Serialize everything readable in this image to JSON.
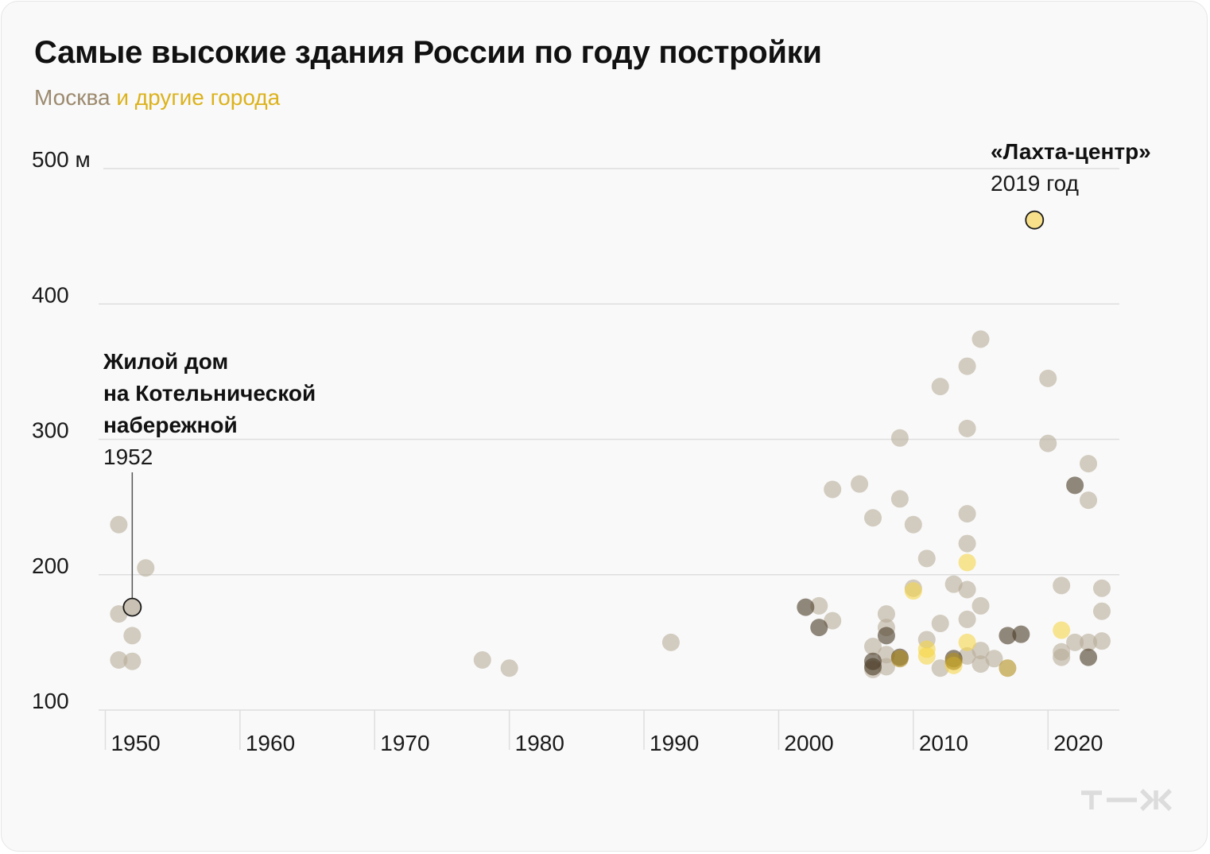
{
  "title": "Самые высокие здания России по году постройки",
  "subtitle": {
    "moscow": "Москва",
    "others": "и другие города"
  },
  "logo_text": "т—ж",
  "colors": {
    "moscow": "#b7ab97",
    "moscow_dark": "#4a3b26",
    "others": "#f5d54a",
    "others_dark": "#b08d1c",
    "grid": "#dedede",
    "background": "#f9f9f9"
  },
  "chart_data": {
    "type": "scatter",
    "title": "Самые высокие здания России по году постройки",
    "xlabel": "",
    "ylabel": "",
    "xlim": [
      1949.5,
      2025.3
    ],
    "ylim": [
      100,
      500
    ],
    "x_ticks": [
      1950,
      1960,
      1970,
      1980,
      1990,
      2000,
      2010,
      2020
    ],
    "y_ticks": [
      {
        "value": 100,
        "label": "100"
      },
      {
        "value": 200,
        "label": "200"
      },
      {
        "value": 300,
        "label": "300"
      },
      {
        "value": 400,
        "label": "400"
      },
      {
        "value": 500,
        "label": "500 м"
      }
    ],
    "grid": true,
    "series": [
      {
        "name": "Москва",
        "color": "#b7ab97",
        "points": [
          {
            "x": 1951,
            "y": 237
          },
          {
            "x": 1951,
            "y": 171
          },
          {
            "x": 1951,
            "y": 137
          },
          {
            "x": 1952,
            "y": 155
          },
          {
            "x": 1952,
            "y": 136
          },
          {
            "x": 1953,
            "y": 205
          },
          {
            "x": 1978,
            "y": 137
          },
          {
            "x": 1980,
            "y": 131
          },
          {
            "x": 1992,
            "y": 150
          },
          {
            "x": 2003,
            "y": 177
          },
          {
            "x": 2004,
            "y": 166
          },
          {
            "x": 2004,
            "y": 263
          },
          {
            "x": 2006,
            "y": 267
          },
          {
            "x": 2007,
            "y": 242
          },
          {
            "x": 2007,
            "y": 147
          },
          {
            "x": 2007,
            "y": 130
          },
          {
            "x": 2008,
            "y": 171
          },
          {
            "x": 2008,
            "y": 161
          },
          {
            "x": 2008,
            "y": 141
          },
          {
            "x": 2008,
            "y": 132
          },
          {
            "x": 2009,
            "y": 301
          },
          {
            "x": 2009,
            "y": 256
          },
          {
            "x": 2010,
            "y": 237
          },
          {
            "x": 2010,
            "y": 190
          },
          {
            "x": 2011,
            "y": 212
          },
          {
            "x": 2011,
            "y": 152
          },
          {
            "x": 2012,
            "y": 339
          },
          {
            "x": 2012,
            "y": 164
          },
          {
            "x": 2012,
            "y": 131
          },
          {
            "x": 2013,
            "y": 193
          },
          {
            "x": 2014,
            "y": 354
          },
          {
            "x": 2014,
            "y": 308
          },
          {
            "x": 2014,
            "y": 245
          },
          {
            "x": 2014,
            "y": 223
          },
          {
            "x": 2014,
            "y": 189
          },
          {
            "x": 2014,
            "y": 167
          },
          {
            "x": 2014,
            "y": 140
          },
          {
            "x": 2015,
            "y": 374
          },
          {
            "x": 2015,
            "y": 177
          },
          {
            "x": 2015,
            "y": 144
          },
          {
            "x": 2015,
            "y": 134
          },
          {
            "x": 2016,
            "y": 138
          },
          {
            "x": 2020,
            "y": 345
          },
          {
            "x": 2020,
            "y": 297
          },
          {
            "x": 2021,
            "y": 192
          },
          {
            "x": 2021,
            "y": 143
          },
          {
            "x": 2021,
            "y": 139
          },
          {
            "x": 2022,
            "y": 150
          },
          {
            "x": 2023,
            "y": 282
          },
          {
            "x": 2023,
            "y": 255
          },
          {
            "x": 2023,
            "y": 150
          },
          {
            "x": 2024,
            "y": 190
          },
          {
            "x": 2024,
            "y": 173
          },
          {
            "x": 2024,
            "y": 151
          }
        ]
      },
      {
        "name": "Москва",
        "color": "#4a3b26",
        "points": [
          {
            "x": 2002,
            "y": 176
          },
          {
            "x": 2003,
            "y": 161
          },
          {
            "x": 2007,
            "y": 136
          },
          {
            "x": 2007,
            "y": 132
          },
          {
            "x": 2008,
            "y": 155
          },
          {
            "x": 2009,
            "y": 139
          },
          {
            "x": 2013,
            "y": 138
          },
          {
            "x": 2017,
            "y": 155
          },
          {
            "x": 2018,
            "y": 156
          },
          {
            "x": 2022,
            "y": 266
          },
          {
            "x": 2023,
            "y": 139
          }
        ]
      },
      {
        "name": "и другие города",
        "color": "#f5d54a",
        "points": [
          {
            "x": 2010,
            "y": 188
          },
          {
            "x": 2011,
            "y": 145
          },
          {
            "x": 2011,
            "y": 140
          },
          {
            "x": 2013,
            "y": 133
          },
          {
            "x": 2014,
            "y": 209
          },
          {
            "x": 2014,
            "y": 150
          },
          {
            "x": 2021,
            "y": 159
          }
        ]
      },
      {
        "name": "и другие города",
        "color": "#b08d1c",
        "points": [
          {
            "x": 2009,
            "y": 138
          },
          {
            "x": 2013,
            "y": 136
          },
          {
            "x": 2017,
            "y": 131
          }
        ]
      }
    ],
    "annotations": [
      {
        "name": "Жилой дом на Котельнической набережной",
        "lines": [
          "Жилой дом",
          "на Котельнической",
          "набережной"
        ],
        "year_label": "1952",
        "x": 1952,
        "y": 176,
        "color": "#c9c1b3"
      },
      {
        "name": "«Лахта-центр»",
        "lines": [
          "«Лахта-центр»"
        ],
        "year_label": "2019 год",
        "x": 2019,
        "y": 462,
        "color": "#f8e08a"
      }
    ]
  }
}
